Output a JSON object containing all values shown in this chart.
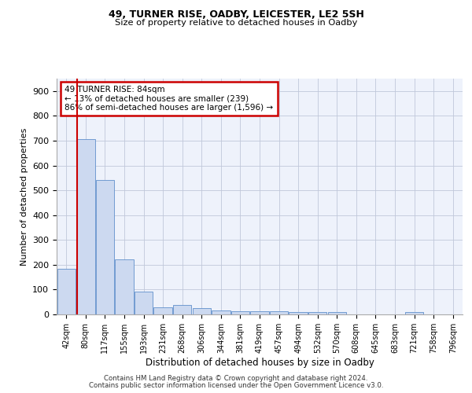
{
  "title1": "49, TURNER RISE, OADBY, LEICESTER, LE2 5SH",
  "title2": "Size of property relative to detached houses in Oadby",
  "xlabel": "Distribution of detached houses by size in Oadby",
  "ylabel": "Number of detached properties",
  "categories": [
    "42sqm",
    "80sqm",
    "117sqm",
    "155sqm",
    "193sqm",
    "231sqm",
    "268sqm",
    "306sqm",
    "344sqm",
    "381sqm",
    "419sqm",
    "457sqm",
    "494sqm",
    "532sqm",
    "570sqm",
    "608sqm",
    "645sqm",
    "683sqm",
    "721sqm",
    "758sqm",
    "796sqm"
  ],
  "values": [
    185,
    707,
    540,
    222,
    92,
    28,
    38,
    25,
    15,
    13,
    13,
    12,
    10,
    10,
    8,
    0,
    0,
    0,
    10,
    0,
    0
  ],
  "bar_color": "#ccd9f0",
  "bar_edge_color": "#6090cc",
  "vline_color": "#cc0000",
  "vline_pos": 0.55,
  "annotation_text": "49 TURNER RISE: 84sqm\n← 13% of detached houses are smaller (239)\n86% of semi-detached houses are larger (1,596) →",
  "annotation_box_color": "#ffffff",
  "annotation_box_edge": "#cc0000",
  "ylim": [
    0,
    950
  ],
  "yticks": [
    0,
    100,
    200,
    300,
    400,
    500,
    600,
    700,
    800,
    900
  ],
  "bg_color": "#eef2fb",
  "footer1": "Contains HM Land Registry data © Crown copyright and database right 2024.",
  "footer2": "Contains public sector information licensed under the Open Government Licence v3.0."
}
